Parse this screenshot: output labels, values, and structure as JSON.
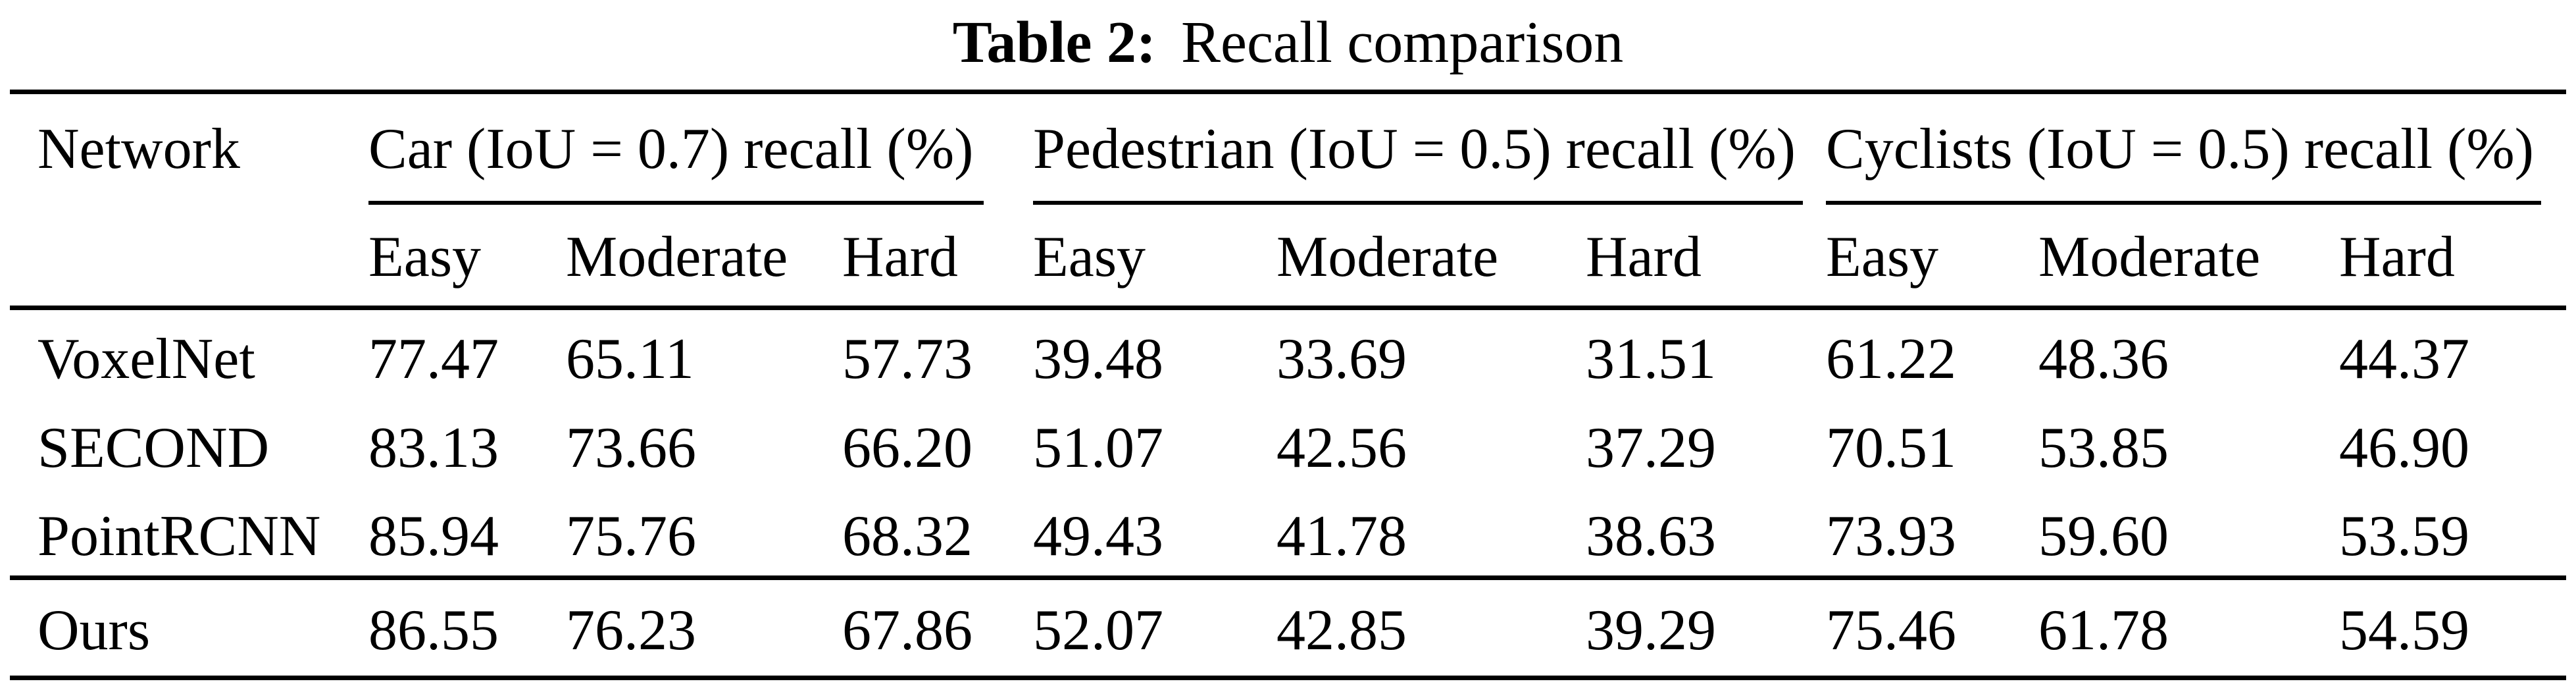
{
  "title": {
    "label": "Table 2:",
    "caption": "Recall comparison"
  },
  "table": {
    "network_header": "Network",
    "groups": [
      {
        "label": "Car (IoU = 0.7) recall (%)"
      },
      {
        "label": "Pedestrian (IoU = 0.5) recall (%)"
      },
      {
        "label": "Cyclists (IoU = 0.5) recall (%)"
      }
    ],
    "subheaders": [
      "Easy",
      "Moderate",
      "Hard",
      "Easy",
      "Moderate",
      "Hard",
      "Easy",
      "Moderate",
      "Hard"
    ],
    "rows": [
      {
        "network": "VoxelNet",
        "values": [
          "77.47",
          "65.11",
          "57.73",
          "39.48",
          "33.69",
          "31.51",
          "61.22",
          "48.36",
          "44.37"
        ]
      },
      {
        "network": "SECOND",
        "values": [
          "83.13",
          "73.66",
          "66.20",
          "51.07",
          "42.56",
          "37.29",
          "70.51",
          "53.85",
          "46.90"
        ]
      },
      {
        "network": "PointRCNN",
        "values": [
          "85.94",
          "75.76",
          "68.32",
          "49.43",
          "41.78",
          "38.63",
          "73.93",
          "59.60",
          "53.59"
        ]
      },
      {
        "network": "Ours",
        "values": [
          "86.55",
          "76.23",
          "67.86",
          "52.07",
          "42.85",
          "39.29",
          "75.46",
          "61.78",
          "54.59"
        ]
      }
    ]
  }
}
